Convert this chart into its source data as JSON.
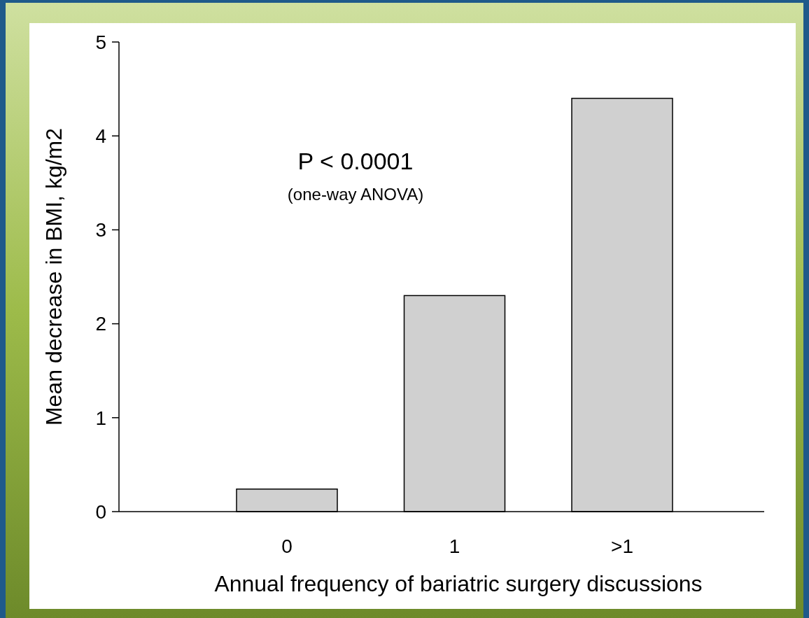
{
  "chart_data": {
    "type": "bar",
    "categories": [
      "0",
      "1",
      ">1"
    ],
    "values": [
      0.24,
      2.3,
      4.4
    ],
    "color": "#d0d0d0",
    "xlabel": "Annual frequency of bariatric surgery discussions",
    "ylabel": "Mean decrease in BMI, kg/m2",
    "ylim": [
      0,
      5
    ],
    "yticks": [
      0,
      1,
      2,
      3,
      4,
      5
    ],
    "annotations": [
      "P < 0.0001",
      "(one-way ANOVA)"
    ]
  }
}
